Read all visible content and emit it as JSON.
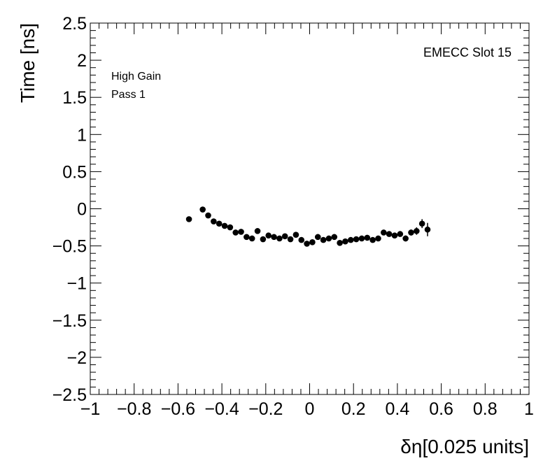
{
  "chart_data": {
    "type": "scatter",
    "xlabel": "δη[0.025 units]",
    "ylabel": "Time [ns]",
    "xlim": [
      -1,
      1
    ],
    "ylim": [
      -2.5,
      2.5
    ],
    "x_major_ticks": [
      -1,
      -0.8,
      -0.6,
      -0.4,
      -0.2,
      0,
      0.2,
      0.4,
      0.6,
      0.8,
      1
    ],
    "x_tick_labels": [
      "−1",
      "−0.8",
      "−0.6",
      "−0.4",
      "−0.2",
      "0",
      "0.2",
      "0.4",
      "0.6",
      "0.8",
      "1"
    ],
    "y_major_ticks": [
      -2.5,
      -2,
      -1.5,
      -1,
      -0.5,
      0,
      0.5,
      1,
      1.5,
      2,
      2.5
    ],
    "y_tick_labels": [
      "−2.5",
      "−2",
      "−1.5",
      "−1",
      "−0.5",
      "0",
      "0.5",
      "1",
      "1.5",
      "2",
      "2.5"
    ],
    "grid": false,
    "annotations": {
      "top_left": [
        "High Gain",
        "Pass 1"
      ],
      "top_right": "EMECC Slot 15"
    },
    "series": [
      {
        "marker": "circle",
        "color": "#000000",
        "x": [
          -0.55,
          -0.4875,
          -0.4625,
          -0.4375,
          -0.4125,
          -0.3875,
          -0.3625,
          -0.3375,
          -0.3125,
          -0.2875,
          -0.2625,
          -0.2375,
          -0.2125,
          -0.1875,
          -0.1625,
          -0.1375,
          -0.1125,
          -0.0875,
          -0.0625,
          -0.0375,
          -0.0125,
          0.0125,
          0.0375,
          0.0625,
          0.0875,
          0.1125,
          0.1375,
          0.1625,
          0.1875,
          0.2125,
          0.2375,
          0.2625,
          0.2875,
          0.3125,
          0.3375,
          0.3625,
          0.3875,
          0.4125,
          0.4375,
          0.4625,
          0.4875,
          0.5125,
          0.5375
        ],
        "y": [
          -0.14,
          -0.01,
          -0.09,
          -0.17,
          -0.2,
          -0.23,
          -0.25,
          -0.32,
          -0.31,
          -0.38,
          -0.4,
          -0.3,
          -0.41,
          -0.36,
          -0.38,
          -0.4,
          -0.37,
          -0.41,
          -0.35,
          -0.42,
          -0.47,
          -0.45,
          -0.38,
          -0.42,
          -0.4,
          -0.38,
          -0.46,
          -0.44,
          -0.42,
          -0.41,
          -0.4,
          -0.39,
          -0.42,
          -0.4,
          -0.32,
          -0.34,
          -0.36,
          -0.34,
          -0.4,
          -0.32,
          -0.3,
          -0.2,
          -0.28
        ],
        "yerr": [
          0.03,
          0.03,
          0.03,
          0.03,
          0.03,
          0.03,
          0.03,
          0.03,
          0.03,
          0.03,
          0.03,
          0.03,
          0.03,
          0.03,
          0.03,
          0.03,
          0.03,
          0.03,
          0.03,
          0.03,
          0.03,
          0.03,
          0.03,
          0.03,
          0.03,
          0.03,
          0.03,
          0.03,
          0.03,
          0.03,
          0.03,
          0.03,
          0.03,
          0.03,
          0.03,
          0.03,
          0.03,
          0.03,
          0.04,
          0.04,
          0.05,
          0.06,
          0.09
        ]
      }
    ]
  }
}
